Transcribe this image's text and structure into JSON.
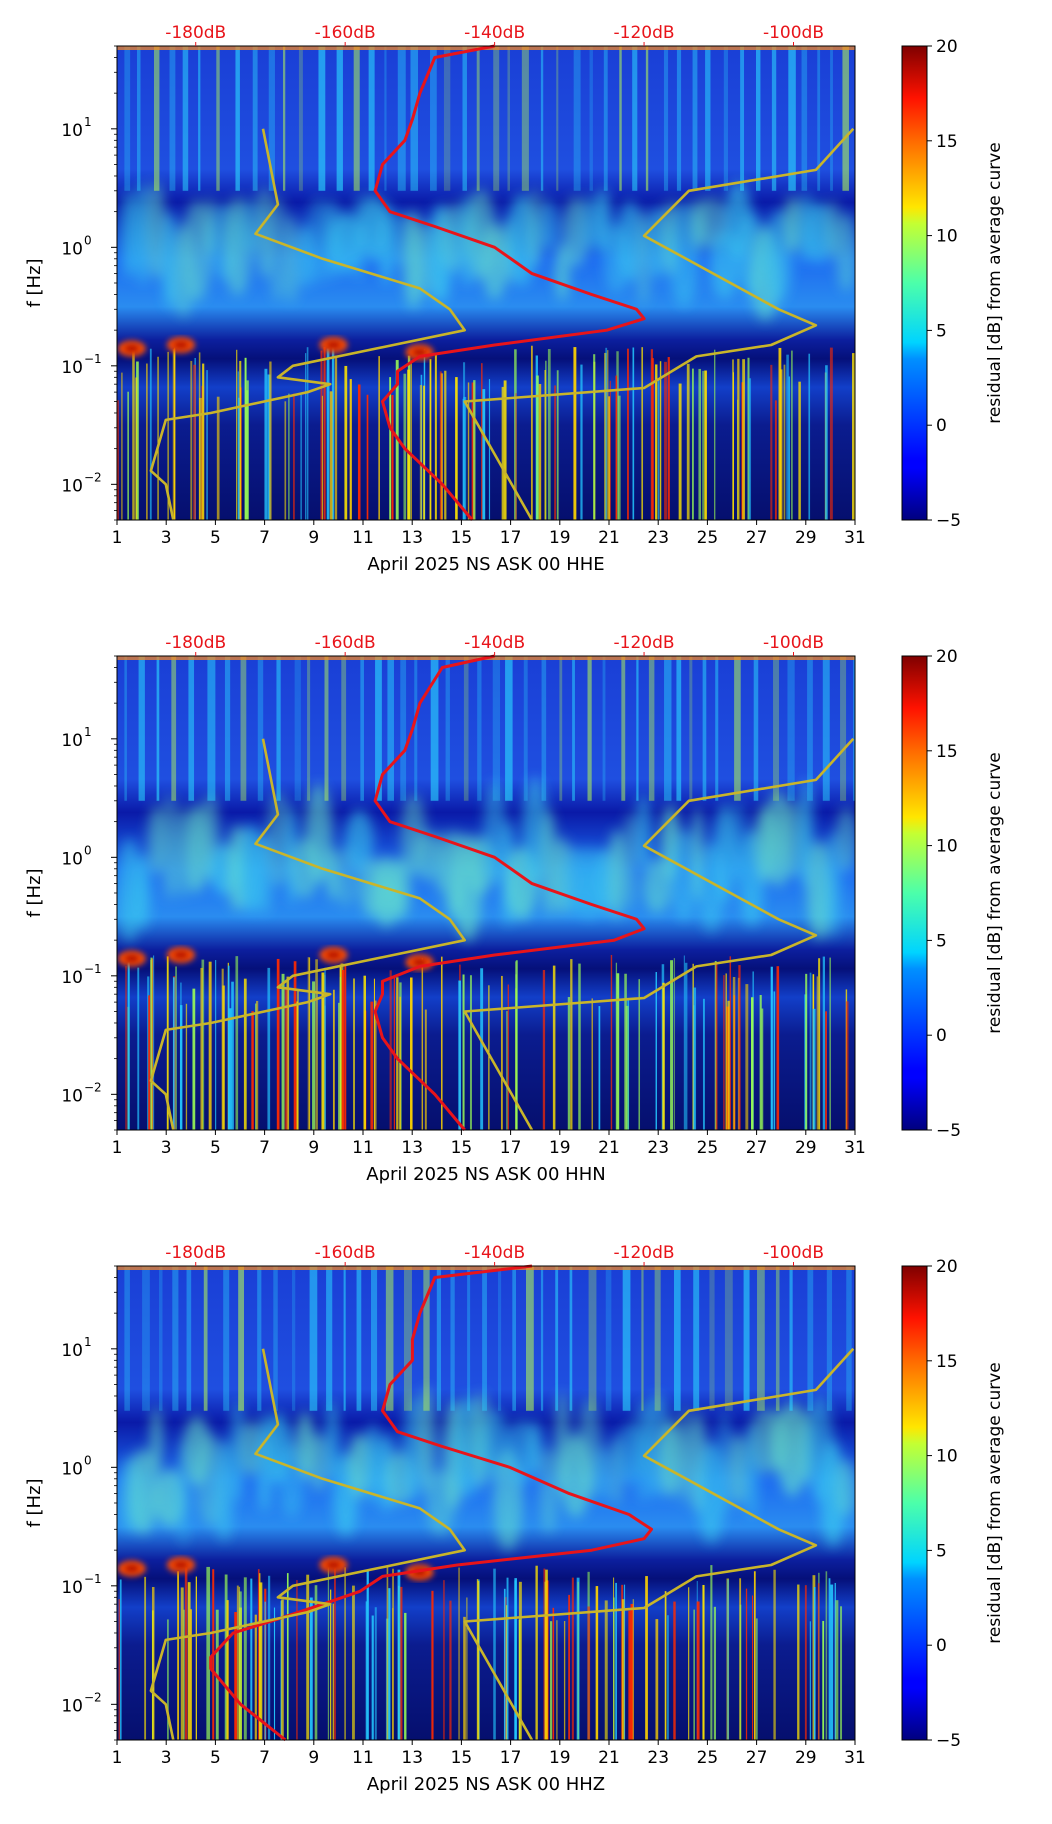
{
  "colorbar": {
    "label": "residual [dB] from average curve",
    "ticks": [
      "20",
      "15",
      "10",
      "5",
      "0",
      "−5"
    ],
    "range": [
      -5,
      20
    ]
  },
  "panels": [
    {
      "id": "hhe",
      "xlabel": "April 2025 NS ASK 00 HHE",
      "ylabel": "f [Hz]",
      "x_ticks": [
        "1",
        "3",
        "5",
        "7",
        "9",
        "11",
        "13",
        "15",
        "17",
        "19",
        "21",
        "23",
        "25",
        "27",
        "29",
        "31"
      ],
      "y_ticks": [
        "10",
        "10",
        "10",
        "10"
      ],
      "y_tick_exponents": [
        "1",
        "0",
        "−1",
        "−2"
      ],
      "top_ticks": [
        "-180dB",
        "-160dB",
        "-140dB",
        "-120dB",
        "-100dB"
      ]
    },
    {
      "id": "hhn",
      "xlabel": "April 2025 NS ASK 00 HHN",
      "ylabel": "f [Hz]",
      "x_ticks": [
        "1",
        "3",
        "5",
        "7",
        "9",
        "11",
        "13",
        "15",
        "17",
        "19",
        "21",
        "23",
        "25",
        "27",
        "29",
        "31"
      ],
      "y_ticks": [
        "10",
        "10",
        "10",
        "10"
      ],
      "y_tick_exponents": [
        "1",
        "0",
        "−1",
        "−2"
      ],
      "top_ticks": [
        "-180dB",
        "-160dB",
        "-140dB",
        "-120dB",
        "-100dB"
      ]
    },
    {
      "id": "hhz",
      "xlabel": "April 2025 NS ASK 00 HHZ",
      "ylabel": "f [Hz]",
      "x_ticks": [
        "1",
        "3",
        "5",
        "7",
        "9",
        "11",
        "13",
        "15",
        "17",
        "19",
        "21",
        "23",
        "25",
        "27",
        "29",
        "31"
      ],
      "y_ticks": [
        "10",
        "10",
        "10",
        "10"
      ],
      "y_tick_exponents": [
        "1",
        "0",
        "−1",
        "−2"
      ],
      "top_ticks": [
        "-180dB",
        "-160dB",
        "-140dB",
        "-120dB",
        "-100dB"
      ]
    }
  ],
  "chart_data": [
    {
      "type": "heatmap",
      "channel": "HHE",
      "xlabel": "April 2025 NS ASK 00 HHE",
      "ylabel": "f [Hz]",
      "xlim": [
        1,
        31
      ],
      "ylim_hz": [
        0.005,
        50
      ],
      "yscale": "log",
      "color_range_db": [
        -5,
        20
      ],
      "colormap": "jet",
      "top_axis_db": [
        -180,
        -160,
        -140,
        -120,
        -100
      ],
      "series": [
        {
          "name": "average PSD curve",
          "color": "#e8141a",
          "unit": "dB",
          "points": [
            [
              -140,
              50
            ],
            [
              -148,
              40
            ],
            [
              -150,
              20
            ],
            [
              -151,
              12
            ],
            [
              -152,
              8
            ],
            [
              -155,
              5
            ],
            [
              -156,
              3
            ],
            [
              -154,
              2
            ],
            [
              -148,
              1.5
            ],
            [
              -140,
              1
            ],
            [
              -135,
              0.6
            ],
            [
              -127,
              0.4
            ],
            [
              -121,
              0.3
            ],
            [
              -120,
              0.25
            ],
            [
              -125,
              0.2
            ],
            [
              -140,
              0.15
            ],
            [
              -150,
              0.12
            ],
            [
              -153,
              0.09
            ],
            [
              -153,
              0.07
            ],
            [
              -155,
              0.05
            ],
            [
              -154,
              0.03
            ],
            [
              -152,
              0.02
            ],
            [
              -147,
              0.01
            ],
            [
              -143,
              0.005
            ]
          ]
        },
        {
          "name": "noise model curves",
          "color": "#c9b52a",
          "unit": "dB",
          "points": [
            [
              -171,
              10
            ],
            [
              -169,
              2.3
            ],
            [
              -172,
              1.3
            ],
            [
              -163,
              0.8
            ],
            [
              -150,
              0.45
            ],
            [
              -146,
              0.3
            ],
            [
              -144,
              0.2
            ],
            [
              -167,
              0.1
            ],
            [
              -169,
              0.08
            ],
            [
              -162,
              0.07
            ],
            [
              -165,
              0.06
            ],
            [
              -178,
              0.04
            ],
            [
              -184,
              0.035
            ],
            [
              -186,
              0.013
            ],
            [
              -184,
              0.01
            ],
            [
              -183,
              0.005
            ]
          ]
        },
        {
          "name": "noise model curves",
          "color": "#c9b52a",
          "unit": "dB",
          "points": [
            [
              -92,
              10
            ],
            [
              -97,
              4.5
            ],
            [
              -114,
              3
            ],
            [
              -120,
              1.25
            ],
            [
              -102,
              0.3
            ],
            [
              -97,
              0.22
            ],
            [
              -103,
              0.15
            ],
            [
              -113,
              0.12
            ],
            [
              -120,
              0.065
            ],
            [
              -144,
              0.05
            ],
            [
              -135,
              0.005
            ]
          ]
        }
      ]
    },
    {
      "type": "heatmap",
      "channel": "HHN",
      "xlabel": "April 2025 NS ASK 00 HHN",
      "ylabel": "f [Hz]",
      "xlim": [
        1,
        31
      ],
      "ylim_hz": [
        0.005,
        50
      ],
      "yscale": "log",
      "color_range_db": [
        -5,
        20
      ],
      "colormap": "jet",
      "top_axis_db": [
        -180,
        -160,
        -140,
        -120,
        -100
      ],
      "series": [
        {
          "name": "average PSD curve",
          "color": "#e8141a",
          "unit": "dB",
          "points": [
            [
              -140,
              50
            ],
            [
              -147,
              40
            ],
            [
              -150,
              20
            ],
            [
              -151,
              12
            ],
            [
              -152,
              8
            ],
            [
              -155,
              5
            ],
            [
              -156,
              3
            ],
            [
              -154,
              2
            ],
            [
              -148,
              1.5
            ],
            [
              -140,
              1
            ],
            [
              -135,
              0.6
            ],
            [
              -127,
              0.4
            ],
            [
              -121,
              0.3
            ],
            [
              -120,
              0.25
            ],
            [
              -124,
              0.2
            ],
            [
              -140,
              0.15
            ],
            [
              -150,
              0.12
            ],
            [
              -155,
              0.09
            ],
            [
              -155,
              0.07
            ],
            [
              -156,
              0.05
            ],
            [
              -155,
              0.03
            ],
            [
              -153,
              0.02
            ],
            [
              -148,
              0.01
            ],
            [
              -144,
              0.005
            ]
          ]
        },
        {
          "name": "noise model curves",
          "color": "#c9b52a",
          "unit": "dB",
          "points": [
            [
              -171,
              10
            ],
            [
              -169,
              2.3
            ],
            [
              -172,
              1.3
            ],
            [
              -163,
              0.8
            ],
            [
              -150,
              0.45
            ],
            [
              -146,
              0.3
            ],
            [
              -144,
              0.2
            ],
            [
              -167,
              0.1
            ],
            [
              -169,
              0.08
            ],
            [
              -162,
              0.07
            ],
            [
              -165,
              0.06
            ],
            [
              -178,
              0.04
            ],
            [
              -184,
              0.035
            ],
            [
              -186,
              0.013
            ],
            [
              -184,
              0.01
            ],
            [
              -183,
              0.005
            ]
          ]
        },
        {
          "name": "noise model curves",
          "color": "#c9b52a",
          "unit": "dB",
          "points": [
            [
              -92,
              10
            ],
            [
              -97,
              4.5
            ],
            [
              -114,
              3
            ],
            [
              -120,
              1.25
            ],
            [
              -102,
              0.3
            ],
            [
              -97,
              0.22
            ],
            [
              -103,
              0.15
            ],
            [
              -113,
              0.12
            ],
            [
              -120,
              0.065
            ],
            [
              -144,
              0.05
            ],
            [
              -135,
              0.005
            ]
          ]
        }
      ]
    },
    {
      "type": "heatmap",
      "channel": "HHZ",
      "xlabel": "April 2025 NS ASK 00 HHZ",
      "ylabel": "f [Hz]",
      "xlim": [
        1,
        31
      ],
      "ylim_hz": [
        0.005,
        50
      ],
      "yscale": "log",
      "color_range_db": [
        -5,
        20
      ],
      "colormap": "jet",
      "top_axis_db": [
        -180,
        -160,
        -140,
        -120,
        -100
      ],
      "series": [
        {
          "name": "average PSD curve",
          "color": "#e8141a",
          "unit": "dB",
          "points": [
            [
              -135,
              50
            ],
            [
              -148,
              40
            ],
            [
              -150,
              20
            ],
            [
              -151,
              12
            ],
            [
              -151,
              8
            ],
            [
              -154,
              5
            ],
            [
              -155,
              3
            ],
            [
              -153,
              2
            ],
            [
              -147,
              1.5
            ],
            [
              -138,
              1
            ],
            [
              -130,
              0.6
            ],
            [
              -122,
              0.4
            ],
            [
              -119,
              0.3
            ],
            [
              -120,
              0.25
            ],
            [
              -127,
              0.2
            ],
            [
              -145,
              0.15
            ],
            [
              -155,
              0.12
            ],
            [
              -158,
              0.09
            ],
            [
              -163,
              0.07
            ],
            [
              -170,
              0.05
            ],
            [
              -175,
              0.04
            ],
            [
              -178,
              0.025
            ],
            [
              -178,
              0.02
            ],
            [
              -174,
              0.01
            ],
            [
              -168,
              0.005
            ]
          ]
        },
        {
          "name": "noise model curves",
          "color": "#c9b52a",
          "unit": "dB",
          "points": [
            [
              -171,
              10
            ],
            [
              -169,
              2.3
            ],
            [
              -172,
              1.3
            ],
            [
              -163,
              0.8
            ],
            [
              -150,
              0.45
            ],
            [
              -146,
              0.3
            ],
            [
              -144,
              0.2
            ],
            [
              -167,
              0.1
            ],
            [
              -169,
              0.08
            ],
            [
              -162,
              0.07
            ],
            [
              -165,
              0.06
            ],
            [
              -178,
              0.04
            ],
            [
              -184,
              0.035
            ],
            [
              -186,
              0.013
            ],
            [
              -184,
              0.01
            ],
            [
              -183,
              0.005
            ]
          ]
        },
        {
          "name": "noise model curves",
          "color": "#c9b52a",
          "unit": "dB",
          "points": [
            [
              -92,
              10
            ],
            [
              -97,
              4.5
            ],
            [
              -114,
              3
            ],
            [
              -120,
              1.25
            ],
            [
              -102,
              0.3
            ],
            [
              -97,
              0.22
            ],
            [
              -103,
              0.15
            ],
            [
              -113,
              0.12
            ],
            [
              -120,
              0.065
            ],
            [
              -144,
              0.05
            ],
            [
              -135,
              0.005
            ]
          ]
        }
      ]
    }
  ]
}
